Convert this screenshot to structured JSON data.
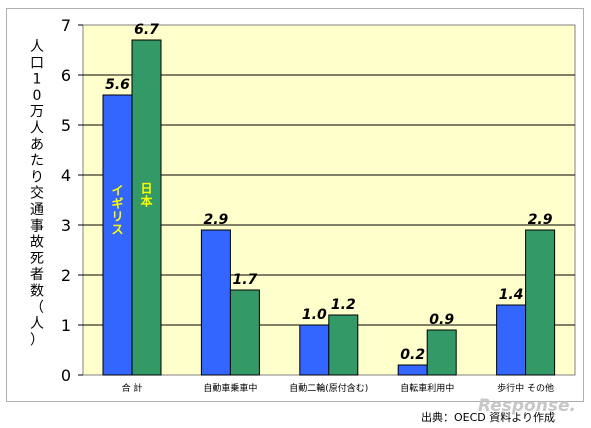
{
  "chart_data": {
    "type": "bar",
    "ylabel": "人口10万人あたり交通事故死者数（人）",
    "ylim": [
      0,
      7
    ],
    "yticks": [
      "0",
      "1",
      "2",
      "3",
      "4",
      "5",
      "6",
      "7"
    ],
    "grid": true,
    "categories": [
      "合 計",
      "自動車乗車中",
      "自動二輪(原付含む)",
      "自転車利用中",
      "歩行中 その他"
    ],
    "series": [
      {
        "name": "イギリス",
        "color": "#3366ff",
        "values": [
          5.6,
          2.9,
          1.0,
          0.2,
          1.4
        ],
        "value_labels": [
          "5.6",
          "2.9",
          "1.0",
          "0.2",
          "1.4"
        ]
      },
      {
        "name": "日本",
        "color": "#339966",
        "values": [
          6.7,
          1.7,
          1.2,
          0.9,
          2.9
        ],
        "value_labels": [
          "6.7",
          "1.7",
          "1.2",
          "0.9",
          "2.9"
        ]
      }
    ],
    "colors": {
      "plot_background": "#ffffcc",
      "series_label_text": "#ffff00"
    }
  },
  "source_note": "出典：OECD 資料より作成",
  "watermark": "Response."
}
